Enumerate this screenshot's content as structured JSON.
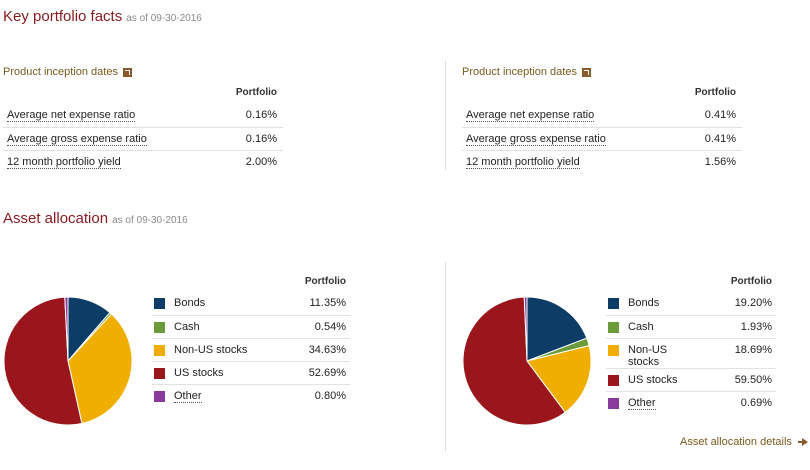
{
  "facts": {
    "title": "Key portfolio facts",
    "as_of": "as of 09-30-2016",
    "panels": [
      {
        "inception_label": "Product inception dates",
        "col_header": "Portfolio",
        "rows": [
          {
            "label": "Average net expense ratio",
            "value": "0.16%"
          },
          {
            "label": "Average gross expense ratio",
            "value": "0.16%"
          },
          {
            "label": "12 month portfolio yield",
            "value": "2.00%"
          }
        ]
      },
      {
        "inception_label": "Product inception dates",
        "col_header": "Portfolio",
        "rows": [
          {
            "label": "Average net expense ratio",
            "value": "0.41%"
          },
          {
            "label": "Average gross expense ratio",
            "value": "0.41%"
          },
          {
            "label": "12 month portfolio yield",
            "value": "1.56%"
          }
        ]
      }
    ]
  },
  "allocation": {
    "title": "Asset allocation",
    "as_of": "as of 09-30-2016",
    "details_link": "Asset allocation details",
    "colors": {
      "bonds": "#0d3d66",
      "cash": "#6b9a3a",
      "nonus": "#f0ae00",
      "us": "#9b161c",
      "other": "#8a3a9a"
    },
    "panels": [
      {
        "col_header": "Portfolio",
        "rows": [
          {
            "key": "bonds",
            "label": "Bonds",
            "value": "11.35%",
            "pct": 11.35
          },
          {
            "key": "cash",
            "label": "Cash",
            "value": "0.54%",
            "pct": 0.54
          },
          {
            "key": "nonus",
            "label": "Non-US stocks",
            "value": "34.63%",
            "pct": 34.63
          },
          {
            "key": "us",
            "label": "US stocks",
            "value": "52.69%",
            "pct": 52.69
          },
          {
            "key": "other",
            "label": "Other",
            "value": "0.80%",
            "pct": 0.8
          }
        ]
      },
      {
        "col_header": "Portfolio",
        "rows": [
          {
            "key": "bonds",
            "label": "Bonds",
            "value": "19.20%",
            "pct": 19.2
          },
          {
            "key": "cash",
            "label": "Cash",
            "value": "1.93%",
            "pct": 1.93
          },
          {
            "key": "nonus",
            "label": "Non-US stocks",
            "value": "18.69%",
            "pct": 18.69
          },
          {
            "key": "us",
            "label": "US stocks",
            "value": "59.50%",
            "pct": 59.5
          },
          {
            "key": "other",
            "label": "Other",
            "value": "0.69%",
            "pct": 0.69
          }
        ]
      }
    ]
  }
}
